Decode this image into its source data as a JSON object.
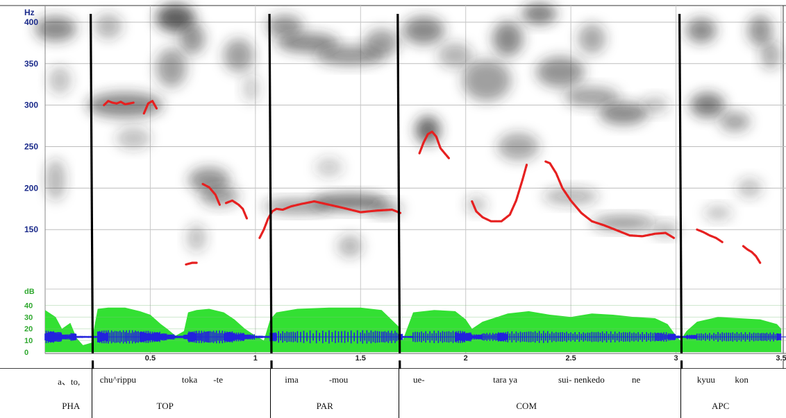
{
  "chart_data": {
    "type": "line",
    "xlabel": "",
    "ylabel": "Hz",
    "xlim": [
      0,
      3.5
    ],
    "ylim_hz": [
      80,
      420
    ],
    "yticks_hz": [
      150,
      200,
      250,
      300,
      350,
      400
    ],
    "ytick_labels": [
      "150",
      "200",
      "250",
      "300",
      "350",
      "400"
    ],
    "xticks": [
      0.5,
      1,
      1.5,
      2,
      2.5,
      3,
      3.5
    ],
    "xtick_labels": [
      "0.5",
      "1",
      "1.5",
      "2",
      "2.5",
      "3",
      "3.5"
    ],
    "db_axis": {
      "label": "dB",
      "ticks": [
        0,
        10,
        20,
        30,
        40
      ],
      "tick_labels": [
        "0",
        "10",
        "20",
        "30",
        "40"
      ]
    },
    "grid": true,
    "colors": {
      "f0": "#e62020",
      "intensity": "#33e033",
      "waveform": "#2222dd",
      "boundary": "#000000",
      "axis_text": "#1a2a8a",
      "db_text": "#2fa82f"
    },
    "boundaries": [
      0.22,
      1.07,
      1.68,
      3.02
    ],
    "f0_series": [
      {
        "x": [
          0.28,
          0.3,
          0.32,
          0.34,
          0.36,
          0.38,
          0.4,
          0.42
        ],
        "y": [
          300,
          305,
          303,
          302,
          304,
          301,
          302,
          303
        ]
      },
      {
        "x": [
          0.47,
          0.49,
          0.51,
          0.53
        ],
        "y": [
          290,
          302,
          305,
          296
        ]
      },
      {
        "x": [
          0.67,
          0.7,
          0.72
        ],
        "y": [
          108,
          110,
          110
        ]
      },
      {
        "x": [
          0.75,
          0.78,
          0.81,
          0.83
        ],
        "y": [
          205,
          201,
          192,
          180
        ]
      },
      {
        "x": [
          0.86,
          0.89,
          0.92,
          0.94,
          0.96
        ],
        "y": [
          182,
          185,
          180,
          175,
          163
        ]
      },
      {
        "x": [
          1.02,
          1.04,
          1.06,
          1.08,
          1.1,
          1.13,
          1.17,
          1.22,
          1.28,
          1.35,
          1.42,
          1.5,
          1.58,
          1.65,
          1.69
        ],
        "y": [
          140,
          150,
          163,
          172,
          175,
          174,
          178,
          181,
          184,
          180,
          176,
          171,
          173,
          174,
          170
        ]
      },
      {
        "x": [
          1.78,
          1.8,
          1.82,
          1.84,
          1.86,
          1.88,
          1.92
        ],
        "y": [
          242,
          255,
          265,
          268,
          262,
          248,
          236
        ]
      },
      {
        "x": [
          2.03,
          2.05,
          2.08,
          2.12,
          2.17,
          2.21,
          2.24,
          2.27,
          2.29
        ],
        "y": [
          184,
          172,
          165,
          160,
          160,
          168,
          185,
          210,
          228
        ]
      },
      {
        "x": [
          2.38,
          2.4,
          2.43,
          2.46,
          2.5,
          2.55,
          2.6,
          2.66,
          2.72,
          2.78,
          2.84,
          2.9,
          2.95,
          2.99
        ],
        "y": [
          232,
          230,
          218,
          200,
          185,
          170,
          160,
          155,
          149,
          143,
          142,
          145,
          146,
          140
        ]
      },
      {
        "x": [
          3.1,
          3.13,
          3.16,
          3.19,
          3.22
        ],
        "y": [
          150,
          147,
          143,
          140,
          135
        ]
      },
      {
        "x": [
          3.32,
          3.34,
          3.36,
          3.38,
          3.4
        ],
        "y": [
          130,
          126,
          123,
          118,
          110
        ]
      }
    ],
    "intensity_db": {
      "x": [
        0.0,
        0.05,
        0.08,
        0.12,
        0.15,
        0.18,
        0.22,
        0.25,
        0.3,
        0.38,
        0.45,
        0.5,
        0.55,
        0.58,
        0.62,
        0.66,
        0.68,
        0.72,
        0.78,
        0.85,
        0.9,
        0.95,
        1.0,
        1.04,
        1.07,
        1.1,
        1.2,
        1.35,
        1.5,
        1.6,
        1.68,
        1.7,
        1.75,
        1.85,
        1.95,
        2.0,
        2.03,
        2.08,
        2.15,
        2.2,
        2.3,
        2.4,
        2.5,
        2.6,
        2.7,
        2.8,
        2.9,
        2.96,
        3.0,
        3.02,
        3.05,
        3.1,
        3.2,
        3.3,
        3.4,
        3.48,
        3.5
      ],
      "y": [
        36,
        30,
        20,
        25,
        12,
        6,
        8,
        37,
        38,
        38,
        35,
        32,
        24,
        20,
        14,
        18,
        34,
        36,
        37,
        34,
        28,
        20,
        14,
        10,
        28,
        34,
        37,
        38,
        38,
        36,
        22,
        10,
        34,
        36,
        35,
        28,
        20,
        26,
        30,
        33,
        35,
        32,
        30,
        33,
        32,
        30,
        29,
        24,
        14,
        10,
        18,
        26,
        30,
        29,
        28,
        24,
        20
      ]
    },
    "annotations": {
      "words": [
        {
          "x": 0.06,
          "text": "a、to,"
        },
        {
          "x": 0.26,
          "text": "chu^rippu"
        },
        {
          "x": 0.65,
          "text": "toka"
        },
        {
          "x": 0.8,
          "text": "-te"
        },
        {
          "x": 1.14,
          "text": "ima"
        },
        {
          "x": 1.35,
          "text": "-mou"
        },
        {
          "x": 1.75,
          "text": "ue-"
        },
        {
          "x": 2.13,
          "text": "tara ya"
        },
        {
          "x": 2.44,
          "text": "sui- nenkedo"
        },
        {
          "x": 2.79,
          "text": "ne"
        },
        {
          "x": 3.1,
          "text": "kyuu"
        },
        {
          "x": 3.28,
          "text": "kon"
        }
      ],
      "segments": [
        {
          "x": 0.08,
          "text": "PHA"
        },
        {
          "x": 0.53,
          "text": "TOP"
        },
        {
          "x": 1.29,
          "text": "PAR"
        },
        {
          "x": 2.24,
          "text": "COM"
        },
        {
          "x": 3.17,
          "text": "APC"
        }
      ]
    }
  }
}
